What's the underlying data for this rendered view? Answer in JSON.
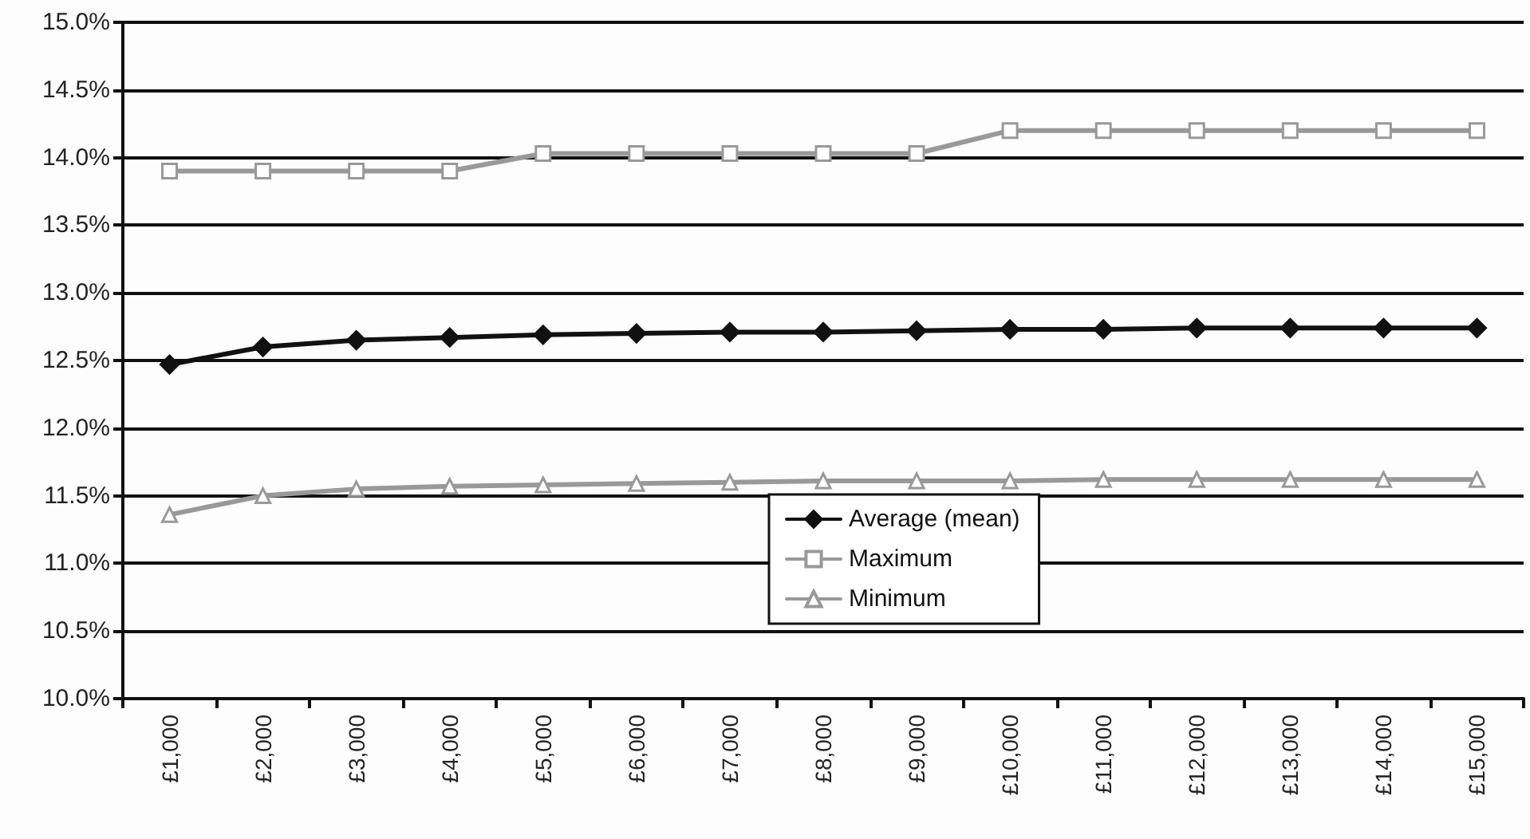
{
  "chart_data": {
    "type": "line",
    "categories": [
      "£1,000",
      "£2,000",
      "£3,000",
      "£4,000",
      "£5,000",
      "£6,000",
      "£7,000",
      "£8,000",
      "£9,000",
      "£10,000",
      "£11,000",
      "£12,000",
      "£13,000",
      "£14,000",
      "£15,000"
    ],
    "series": [
      {
        "name": "Average (mean)",
        "color": "#111111",
        "marker": "diamond",
        "values": [
          12.47,
          12.6,
          12.65,
          12.67,
          12.69,
          12.7,
          12.71,
          12.71,
          12.72,
          12.73,
          12.73,
          12.74,
          12.74,
          12.74,
          12.74
        ]
      },
      {
        "name": "Maximum",
        "color": "#999999",
        "marker": "square",
        "values": [
          13.9,
          13.9,
          13.9,
          13.9,
          14.03,
          14.03,
          14.03,
          14.03,
          14.03,
          14.2,
          14.2,
          14.2,
          14.2,
          14.2,
          14.2
        ]
      },
      {
        "name": "Minimum",
        "color": "#999999",
        "marker": "triangle",
        "values": [
          11.36,
          11.5,
          11.55,
          11.57,
          11.58,
          11.59,
          11.6,
          11.61,
          11.61,
          11.61,
          11.62,
          11.62,
          11.62,
          11.62,
          11.62
        ]
      }
    ],
    "ylim": [
      10,
      15
    ],
    "yticks": [
      {
        "value": 10,
        "label": "10.0%"
      },
      {
        "value": 10.5,
        "label": "10.5%"
      },
      {
        "value": 11,
        "label": "11.0%"
      },
      {
        "value": 11.5,
        "label": "11.5%"
      },
      {
        "value": 12,
        "label": "12.0%"
      },
      {
        "value": 12.5,
        "label": "12.5%"
      },
      {
        "value": 13,
        "label": "13.0%"
      },
      {
        "value": 13.5,
        "label": "13.5%"
      },
      {
        "value": 14,
        "label": "14.0%"
      },
      {
        "value": 14.5,
        "label": "14.5%"
      },
      {
        "value": 15,
        "label": "15.0%"
      }
    ],
    "grid": "y",
    "legend": "bottom",
    "line_style": "solid"
  }
}
